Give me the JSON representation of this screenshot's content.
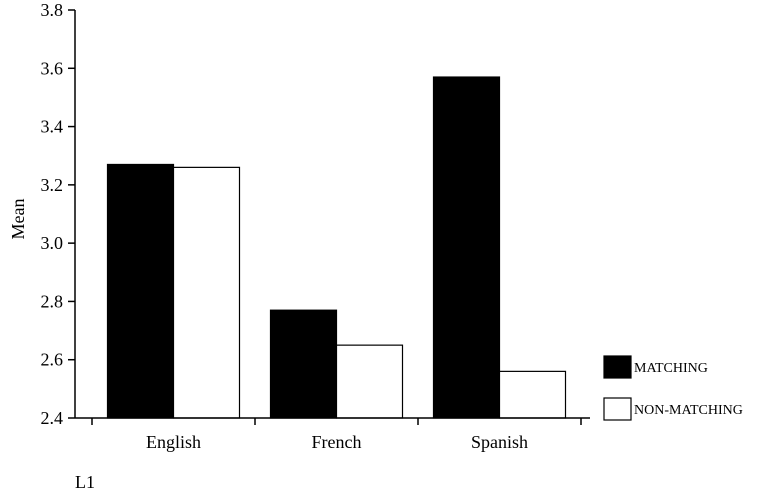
{
  "chart_data": {
    "type": "bar",
    "categories": [
      "English",
      "French",
      "Spanish"
    ],
    "series": [
      {
        "name": "MATCHING",
        "values": [
          3.27,
          2.77,
          3.57
        ],
        "color": "#000000"
      },
      {
        "name": "NON-MATCHING",
        "values": [
          3.26,
          2.65,
          2.56
        ],
        "color": "#ffffff"
      }
    ],
    "ylabel": "Mean",
    "xlabel": "L1",
    "ylim": [
      2.4,
      3.8
    ],
    "yticks": [
      "2.4",
      "2.6",
      "2.8",
      "3.0",
      "3.2",
      "3.4",
      "3.6",
      "3.8"
    ],
    "grid": false,
    "legend_position": "bottom-right"
  }
}
